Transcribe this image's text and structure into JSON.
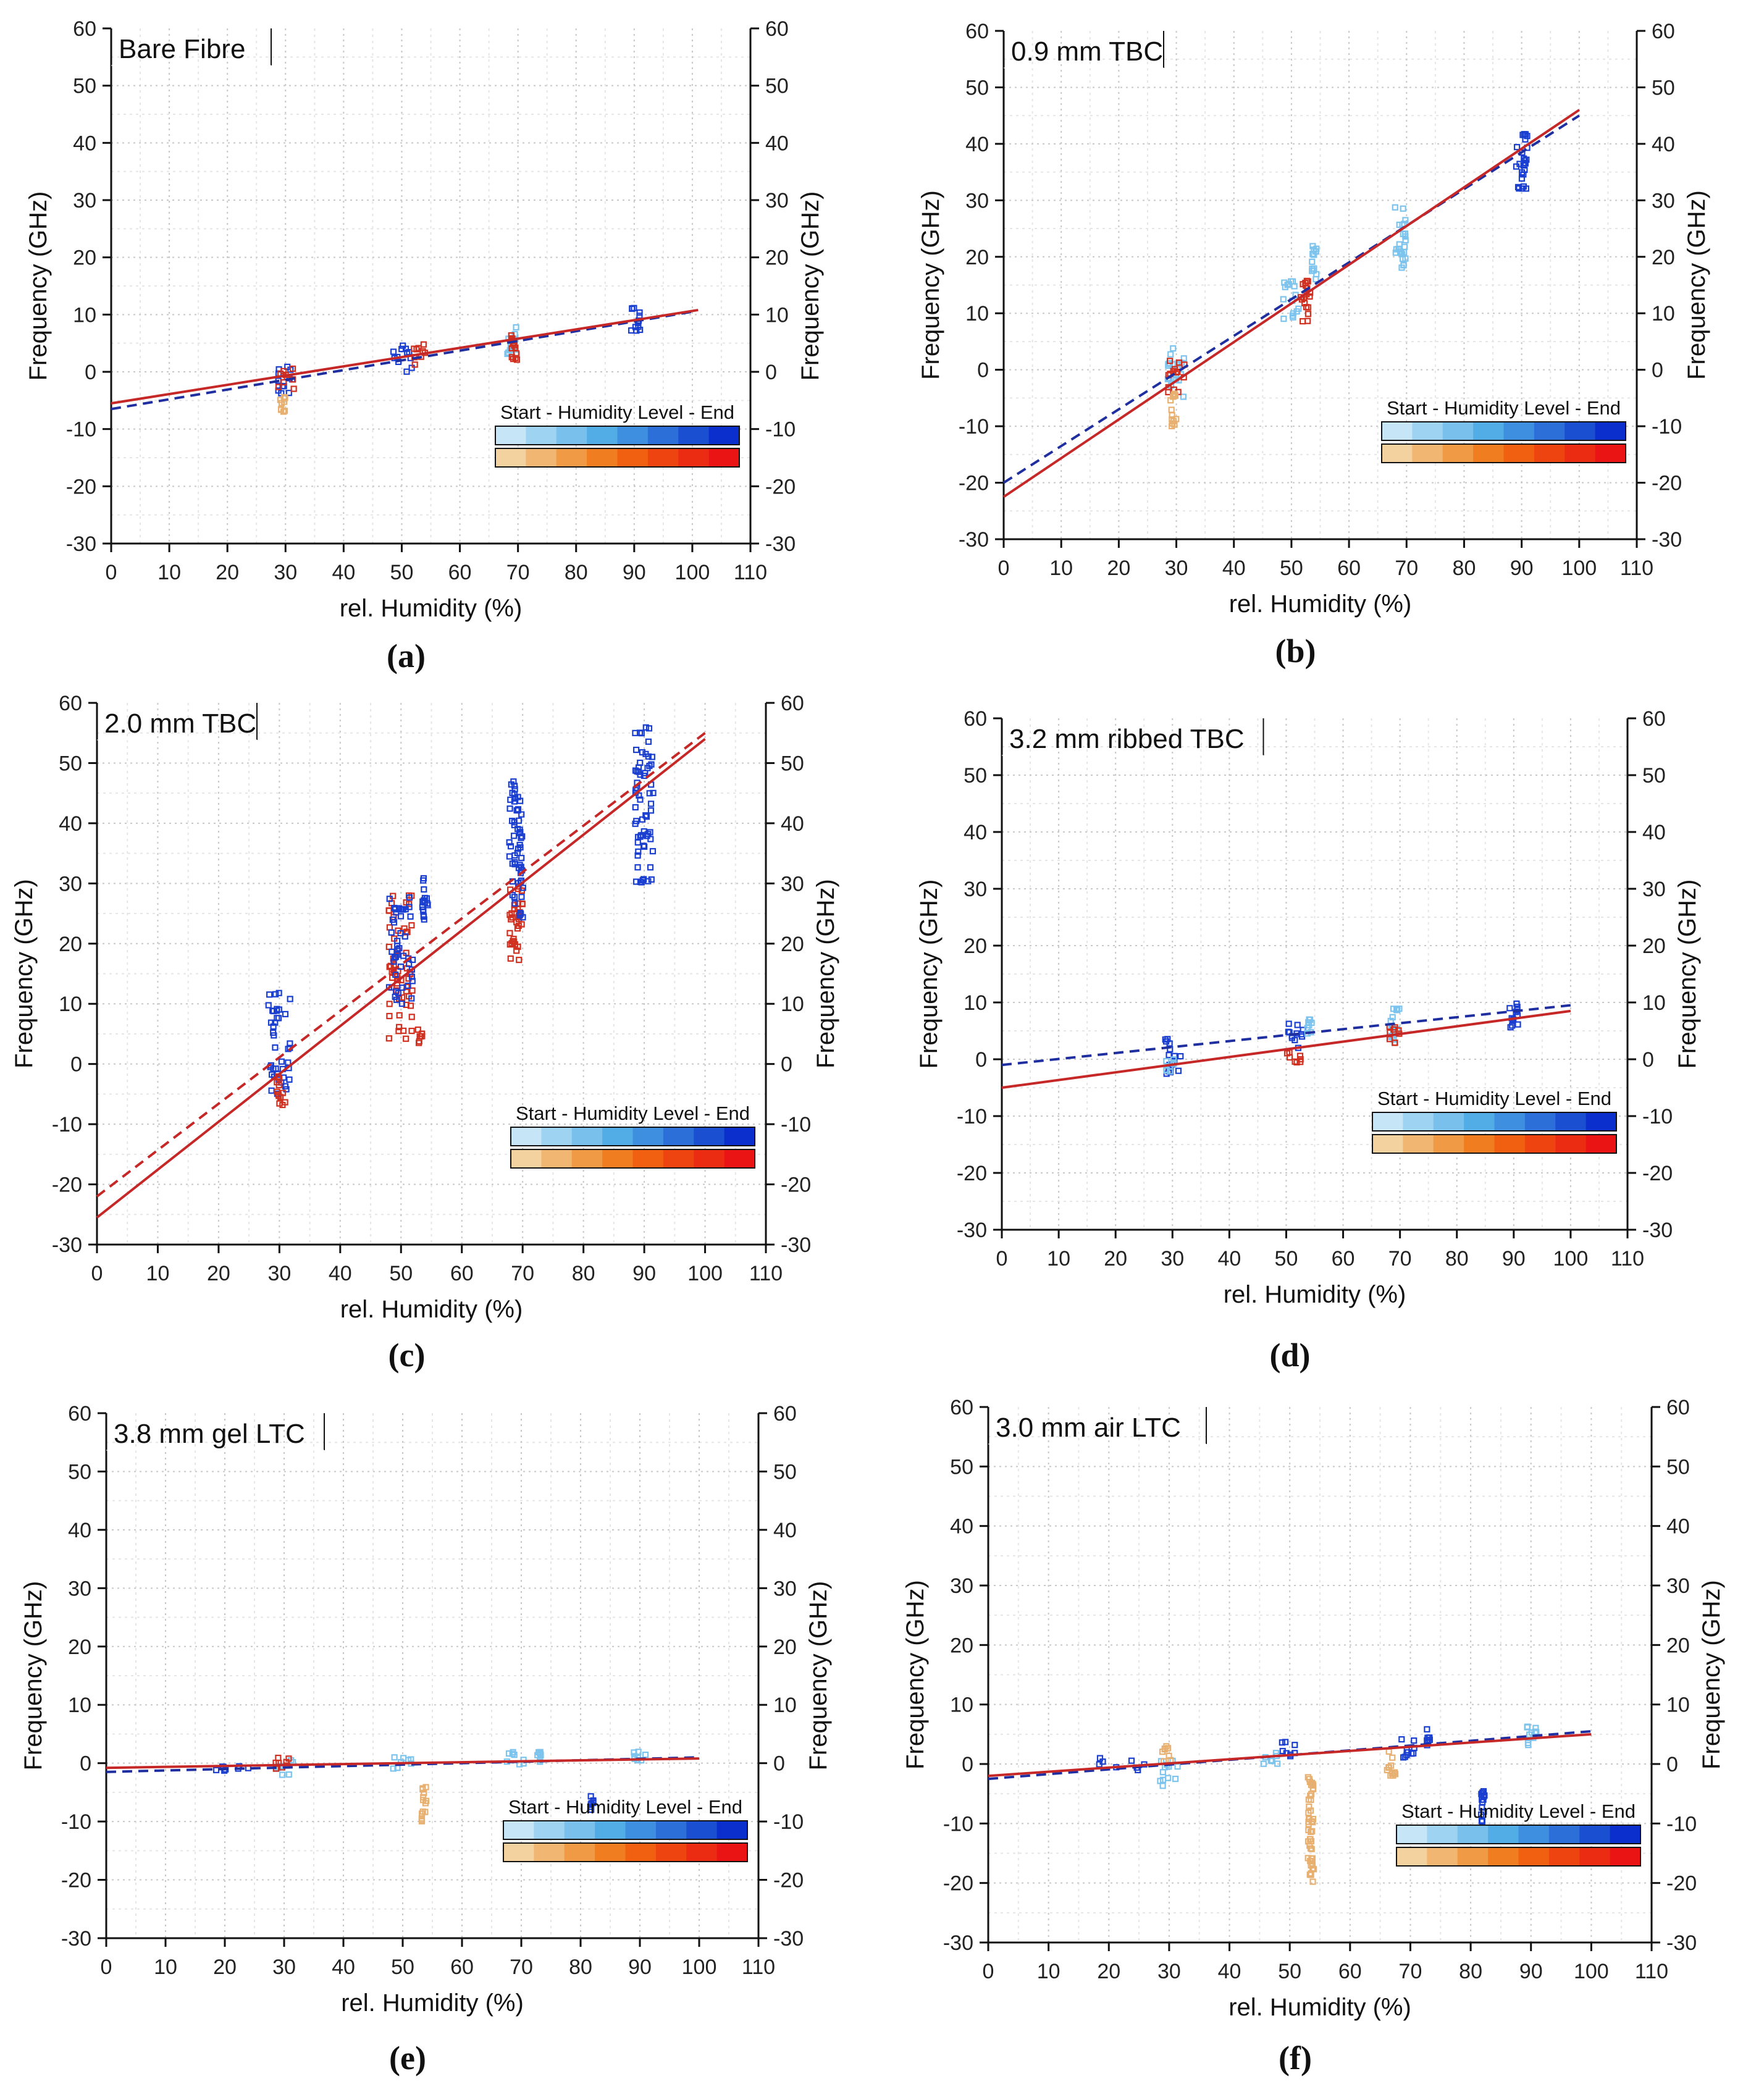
{
  "figure": {
    "legend": {
      "text": "Start - Humidity Level - End",
      "blue_shades": [
        "#c6e6f8",
        "#9fd3f2",
        "#79c0ec",
        "#52ade6",
        "#3f8fe0",
        "#2c6fd9",
        "#1a4fd1",
        "#0a2fcc"
      ],
      "red_shades": [
        "#f3d2a0",
        "#f1b671",
        "#f09a45",
        "#f07d1f",
        "#f06010",
        "#ee4510",
        "#ec2c12",
        "#ea1414"
      ]
    },
    "colors": {
      "blue_fit": "#1f2fa0",
      "red_fit": "#c62828",
      "blue_marker": "#1a3fd0",
      "light_blue_marker": "#7cc4ee",
      "red_marker": "#d03020",
      "orange_marker": "#e8b070"
    }
  },
  "chart_data": [
    {
      "id": "a",
      "type": "scatter",
      "title": "Bare Fibre",
      "sublabel": "(a)",
      "xlabel": "rel. Humidity (%)",
      "ylabel": "Frequency (GHz)",
      "ylabel_right": "Frequency (GHz)",
      "xlim": [
        0,
        110
      ],
      "ylim": [
        -30,
        60
      ],
      "xticks": [
        0,
        10,
        20,
        30,
        40,
        50,
        60,
        70,
        80,
        90,
        100,
        110
      ],
      "yticks": [
        -30,
        -20,
        -10,
        0,
        10,
        20,
        30,
        40,
        50,
        60
      ],
      "fit_blue": {
        "style": "dashed",
        "x": [
          0,
          100
        ],
        "y": [
          -6.5,
          10.5
        ]
      },
      "fit_red": {
        "style": "solid",
        "x": [
          0,
          101
        ],
        "y": [
          -5.5,
          10.8
        ]
      },
      "clusters": [
        {
          "x": 30,
          "dx": 1.5,
          "ymin": -4,
          "ymax": 1,
          "color": "blue"
        },
        {
          "x": 30,
          "dx": 1.5,
          "ymin": -3,
          "ymax": 1,
          "color": "red"
        },
        {
          "x": 29.5,
          "dx": 0.5,
          "ymin": -7,
          "ymax": -3,
          "color": "orange"
        },
        {
          "x": 50,
          "dx": 2,
          "ymin": 0,
          "ymax": 5,
          "color": "blue"
        },
        {
          "x": 53,
          "dx": 1,
          "ymin": 1,
          "ymax": 5,
          "color": "red"
        },
        {
          "x": 69,
          "dx": 1,
          "ymin": 3,
          "ymax": 8,
          "color": "lightblue"
        },
        {
          "x": 69.5,
          "dx": 0.8,
          "ymin": 2,
          "ymax": 8,
          "color": "red"
        },
        {
          "x": 90,
          "dx": 1,
          "ymin": 7,
          "ymax": 12,
          "color": "blue"
        }
      ]
    },
    {
      "id": "b",
      "type": "scatter",
      "title": "0.9 mm TBC",
      "sublabel": "(b)",
      "xlabel": "rel. Humidity (%)",
      "ylabel": "Frequency (GHz)",
      "ylabel_right": "Frequency (GHz)",
      "xlim": [
        0,
        110
      ],
      "ylim": [
        -30,
        60
      ],
      "xticks": [
        0,
        10,
        20,
        30,
        40,
        50,
        60,
        70,
        80,
        90,
        100,
        110
      ],
      "yticks": [
        -30,
        -20,
        -10,
        0,
        10,
        20,
        30,
        40,
        50,
        60
      ],
      "fit_blue": {
        "style": "dashed",
        "x": [
          0,
          100
        ],
        "y": [
          -20,
          45
        ]
      },
      "fit_red": {
        "style": "solid",
        "x": [
          0,
          100
        ],
        "y": [
          -22.5,
          46
        ]
      },
      "clusters": [
        {
          "x": 30,
          "dx": 1.5,
          "ymin": -5,
          "ymax": 4,
          "color": "lightblue"
        },
        {
          "x": 30,
          "dx": 1.5,
          "ymin": -4,
          "ymax": 2,
          "color": "red"
        },
        {
          "x": 29.5,
          "dx": 0.5,
          "ymin": -10,
          "ymax": -4,
          "color": "orange"
        },
        {
          "x": 50,
          "dx": 1.5,
          "ymin": 9,
          "ymax": 16,
          "color": "lightblue"
        },
        {
          "x": 52.5,
          "dx": 1,
          "ymin": 8,
          "ymax": 16,
          "color": "red"
        },
        {
          "x": 54,
          "dx": 0.5,
          "ymin": 16,
          "ymax": 22,
          "color": "lightblue"
        },
        {
          "x": 69,
          "dx": 1,
          "ymin": 18,
          "ymax": 29,
          "color": "lightblue"
        },
        {
          "x": 90,
          "dx": 1,
          "ymin": 32,
          "ymax": 43,
          "color": "blue"
        }
      ]
    },
    {
      "id": "c",
      "type": "scatter",
      "title": "2.0 mm TBC",
      "sublabel": "(c)",
      "xlabel": "rel. Humidity (%)",
      "ylabel": "Frequency (GHz)",
      "ylabel_right": "Frequency (GHz)",
      "xlim": [
        0,
        110
      ],
      "ylim": [
        -30,
        60
      ],
      "xticks": [
        0,
        10,
        20,
        30,
        40,
        50,
        60,
        70,
        80,
        90,
        100,
        110
      ],
      "yticks": [
        -30,
        -20,
        -10,
        0,
        10,
        20,
        30,
        40,
        50,
        60
      ],
      "fit_blue": {
        "style": "dashed",
        "color": "red",
        "x": [
          0,
          100
        ],
        "y": [
          -22,
          55
        ]
      },
      "fit_red": {
        "style": "solid",
        "x": [
          0,
          100
        ],
        "y": [
          -25.5,
          54
        ]
      },
      "clusters": [
        {
          "x": 30,
          "dx": 1.8,
          "ymin": -5,
          "ymax": 12,
          "color": "blue"
        },
        {
          "x": 30.5,
          "dx": 1,
          "ymin": -7,
          "ymax": -2,
          "color": "red"
        },
        {
          "x": 50,
          "dx": 2,
          "ymin": 4,
          "ymax": 28,
          "color": "red"
        },
        {
          "x": 50,
          "dx": 2,
          "ymin": 10,
          "ymax": 28,
          "color": "blue"
        },
        {
          "x": 54,
          "dx": 0.5,
          "ymin": 24,
          "ymax": 31,
          "color": "blue"
        },
        {
          "x": 53,
          "dx": 0.5,
          "ymin": 3,
          "ymax": 6,
          "color": "red"
        },
        {
          "x": 69,
          "dx": 1.2,
          "ymin": 17,
          "ymax": 30,
          "color": "red"
        },
        {
          "x": 69,
          "dx": 1.2,
          "ymin": 24,
          "ymax": 48,
          "color": "blue"
        },
        {
          "x": 90,
          "dx": 1.5,
          "ymin": 30,
          "ymax": 56,
          "color": "blue"
        }
      ]
    },
    {
      "id": "d",
      "type": "scatter",
      "title": "3.2 mm ribbed TBC",
      "sublabel": "(d)",
      "xlabel": "rel. Humidity (%)",
      "ylabel": "Frequency (GHz)",
      "ylabel_right": "Frequency (GHz)",
      "xlim": [
        0,
        110
      ],
      "ylim": [
        -30,
        60
      ],
      "xticks": [
        0,
        10,
        20,
        30,
        40,
        50,
        60,
        70,
        80,
        90,
        100,
        110
      ],
      "yticks": [
        -30,
        -20,
        -10,
        0,
        10,
        20,
        30,
        40,
        50,
        60
      ],
      "fit_blue": {
        "style": "dashed",
        "x": [
          0,
          100
        ],
        "y": [
          -1,
          9.5
        ]
      },
      "fit_red": {
        "style": "solid",
        "x": [
          0,
          100
        ],
        "y": [
          -5,
          8.5
        ]
      },
      "clusters": [
        {
          "x": 30,
          "dx": 1.5,
          "ymin": -3,
          "ymax": 4,
          "color": "blue"
        },
        {
          "x": 29.5,
          "dx": 0.8,
          "ymin": -3,
          "ymax": 0,
          "color": "lightblue"
        },
        {
          "x": 51,
          "dx": 2,
          "ymin": 2,
          "ymax": 7,
          "color": "blue"
        },
        {
          "x": 52,
          "dx": 2,
          "ymin": -1,
          "ymax": 2,
          "color": "red"
        },
        {
          "x": 54,
          "dx": 0.5,
          "ymin": 4,
          "ymax": 7,
          "color": "lightblue"
        },
        {
          "x": 69,
          "dx": 1,
          "ymin": 3,
          "ymax": 9,
          "color": "lightblue"
        },
        {
          "x": 69,
          "dx": 1,
          "ymin": 2,
          "ymax": 6,
          "color": "red"
        },
        {
          "x": 90,
          "dx": 1,
          "ymin": 5,
          "ymax": 10,
          "color": "blue"
        }
      ]
    },
    {
      "id": "e",
      "type": "scatter",
      "title": "3.8 mm gel LTC",
      "sublabel": "(e)",
      "xlabel": "rel. Humidity (%)",
      "ylabel": "Frequency (GHz)",
      "ylabel_right": "Frequency (GHz)",
      "xlim": [
        0,
        110
      ],
      "ylim": [
        -30,
        60
      ],
      "xticks": [
        0,
        10,
        20,
        30,
        40,
        50,
        60,
        70,
        80,
        90,
        100,
        110
      ],
      "yticks": [
        -30,
        -20,
        -10,
        0,
        10,
        20,
        30,
        40,
        50,
        60
      ],
      "fit_blue": {
        "style": "dashed",
        "x": [
          0,
          100
        ],
        "y": [
          -1.5,
          1
        ]
      },
      "fit_red": {
        "style": "solid",
        "x": [
          0,
          100
        ],
        "y": [
          -0.8,
          0.8
        ]
      },
      "clusters": [
        {
          "x": 22,
          "dx": 4,
          "ymin": -1.5,
          "ymax": -0.5,
          "color": "blue"
        },
        {
          "x": 30,
          "dx": 1.5,
          "ymin": -2,
          "ymax": 0.5,
          "color": "lightblue"
        },
        {
          "x": 30,
          "dx": 1.5,
          "ymin": -1,
          "ymax": 1,
          "color": "red"
        },
        {
          "x": 50,
          "dx": 2,
          "ymin": -1,
          "ymax": 1,
          "color": "lightblue"
        },
        {
          "x": 53.5,
          "dx": 0.5,
          "ymin": -10,
          "ymax": -4,
          "color": "orange"
        },
        {
          "x": 69,
          "dx": 1.5,
          "ymin": -1,
          "ymax": 2,
          "color": "lightblue"
        },
        {
          "x": 73,
          "dx": 0.3,
          "ymin": 0,
          "ymax": 2,
          "color": "lightblue"
        },
        {
          "x": 82,
          "dx": 0.3,
          "ymin": -8,
          "ymax": -5,
          "color": "blue"
        },
        {
          "x": 90,
          "dx": 1,
          "ymin": -0.5,
          "ymax": 2,
          "color": "lightblue"
        }
      ]
    },
    {
      "id": "f",
      "type": "scatter",
      "title": "3.0 mm air LTC",
      "sublabel": "(f)",
      "xlabel": "rel. Humidity (%)",
      "ylabel": "Frequency (GHz)",
      "ylabel_right": "Frequency (GHz)",
      "xlim": [
        0,
        110
      ],
      "ylim": [
        -30,
        60
      ],
      "xticks": [
        0,
        10,
        20,
        30,
        40,
        50,
        60,
        70,
        80,
        90,
        100,
        110
      ],
      "yticks": [
        -30,
        -20,
        -10,
        0,
        10,
        20,
        30,
        40,
        50,
        60
      ],
      "fit_blue": {
        "style": "dashed",
        "x": [
          0,
          100
        ],
        "y": [
          -2.5,
          5.5
        ]
      },
      "fit_red": {
        "style": "solid",
        "x": [
          0,
          100
        ],
        "y": [
          -2,
          5
        ]
      },
      "clusters": [
        {
          "x": 22,
          "dx": 4,
          "ymin": -1.5,
          "ymax": 1,
          "color": "blue"
        },
        {
          "x": 30,
          "dx": 1.5,
          "ymin": -4,
          "ymax": 1,
          "color": "lightblue"
        },
        {
          "x": 29.5,
          "dx": 0.8,
          "ymin": 0,
          "ymax": 3,
          "color": "orange"
        },
        {
          "x": 46,
          "dx": 2,
          "ymin": 0,
          "ymax": 2,
          "color": "lightblue"
        },
        {
          "x": 50,
          "dx": 1.5,
          "ymin": 1,
          "ymax": 4,
          "color": "blue"
        },
        {
          "x": 53.5,
          "dx": 0.5,
          "ymin": -20,
          "ymax": -1,
          "color": "orange"
        },
        {
          "x": 67,
          "dx": 1,
          "ymin": -2,
          "ymax": 3,
          "color": "orange"
        },
        {
          "x": 69.5,
          "dx": 1.2,
          "ymin": 1,
          "ymax": 5,
          "color": "blue"
        },
        {
          "x": 73,
          "dx": 0.3,
          "ymin": 3,
          "ymax": 6,
          "color": "blue"
        },
        {
          "x": 82,
          "dx": 0.3,
          "ymin": -10,
          "ymax": -4,
          "color": "blue"
        },
        {
          "x": 90,
          "dx": 1,
          "ymin": 3,
          "ymax": 7,
          "color": "lightblue"
        }
      ]
    }
  ]
}
